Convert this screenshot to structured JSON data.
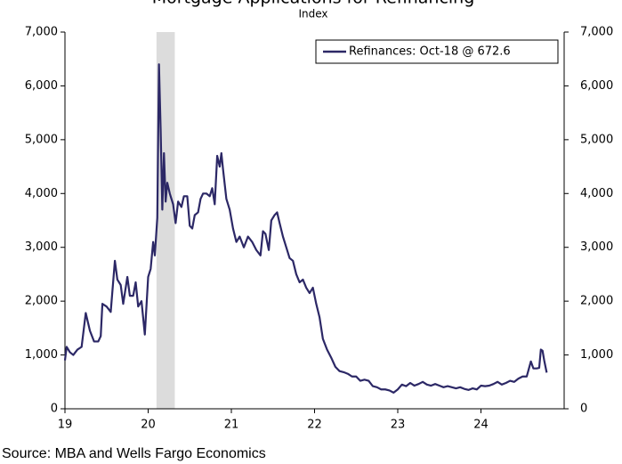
{
  "chart_data": {
    "type": "line",
    "title": "Mortgage Applications for Refinancing",
    "subtitle": "Index",
    "source": "Source: MBA and Wells Fargo Economics",
    "shaded_region": [
      20.1,
      20.32
    ],
    "shade_color": "#dcdcdc",
    "xlim": [
      19,
      25
    ],
    "xticks": [
      19,
      20,
      21,
      22,
      23,
      24
    ],
    "ylim": [
      0,
      7000
    ],
    "yticks": [
      0,
      {
        "value": 1000,
        "label": "1,000"
      },
      {
        "value": 2000,
        "label": "2,000"
      },
      {
        "value": 3000,
        "label": "3,000"
      },
      {
        "value": 4000,
        "label": "4,000"
      },
      {
        "value": 5000,
        "label": "5,000"
      },
      {
        "value": 6000,
        "label": "6,000"
      },
      {
        "value": 7000,
        "label": "7,000"
      }
    ],
    "y2lim": [
      0,
      7000
    ],
    "y2ticks": [
      0,
      {
        "value": 1000,
        "label": "1,000"
      },
      {
        "value": 2000,
        "label": "2,000"
      },
      {
        "value": 3000,
        "label": "3,000"
      },
      {
        "value": 4000,
        "label": "4,000"
      },
      {
        "value": 5000,
        "label": "5,000"
      },
      {
        "value": 6000,
        "label": "6,000"
      },
      {
        "value": 7000,
        "label": "7,000"
      }
    ],
    "legend": "upper right",
    "x": [
      19.0,
      19.02,
      19.06,
      19.1,
      19.15,
      19.2,
      19.25,
      19.3,
      19.35,
      19.4,
      19.43,
      19.45,
      19.5,
      19.55,
      19.6,
      19.63,
      19.67,
      19.7,
      19.75,
      19.78,
      19.82,
      19.85,
      19.88,
      19.92,
      19.96,
      20.0,
      20.03,
      20.06,
      20.08,
      20.11,
      20.13,
      20.15,
      20.17,
      20.19,
      20.21,
      20.23,
      20.26,
      20.3,
      20.33,
      20.36,
      20.4,
      20.43,
      20.47,
      20.5,
      20.53,
      20.56,
      20.6,
      20.63,
      20.66,
      20.7,
      20.74,
      20.77,
      20.8,
      20.83,
      20.86,
      20.88,
      20.9,
      20.94,
      20.98,
      21.02,
      21.06,
      21.1,
      21.15,
      21.2,
      21.25,
      21.3,
      21.35,
      21.38,
      21.41,
      21.45,
      21.48,
      21.52,
      21.55,
      21.58,
      21.62,
      21.66,
      21.7,
      21.74,
      21.78,
      21.82,
      21.86,
      21.9,
      21.94,
      21.98,
      22.02,
      22.06,
      22.1,
      22.15,
      22.2,
      22.25,
      22.3,
      22.35,
      22.4,
      22.45,
      22.5,
      22.55,
      22.6,
      22.65,
      22.7,
      22.75,
      22.8,
      22.85,
      22.9,
      22.95,
      23.0,
      23.05,
      23.1,
      23.15,
      23.2,
      23.25,
      23.3,
      23.35,
      23.4,
      23.45,
      23.5,
      23.55,
      23.6,
      23.65,
      23.7,
      23.75,
      23.8,
      23.85,
      23.9,
      23.95,
      24.0,
      24.05,
      24.1,
      24.15,
      24.2,
      24.25,
      24.3,
      24.35,
      24.4,
      24.45,
      24.5,
      24.55,
      24.6,
      24.63,
      24.67,
      24.7,
      24.72,
      24.74,
      24.76,
      24.79
    ],
    "series": [
      {
        "name": "Refinances: Oct-18 @ 672.6",
        "color": "#2c2866",
        "values": [
          900,
          1150,
          1050,
          1000,
          1100,
          1150,
          1780,
          1450,
          1250,
          1250,
          1350,
          1950,
          1900,
          1800,
          2750,
          2400,
          2300,
          1950,
          2450,
          2100,
          2100,
          2350,
          1900,
          2000,
          1380,
          2450,
          2600,
          3100,
          2850,
          3550,
          6400,
          5200,
          3700,
          4750,
          3850,
          4200,
          4000,
          3800,
          3450,
          3850,
          3750,
          3950,
          3950,
          3400,
          3350,
          3600,
          3650,
          3900,
          4000,
          4000,
          3950,
          4100,
          3800,
          4700,
          4500,
          4750,
          4450,
          3900,
          3700,
          3350,
          3100,
          3200,
          3000,
          3200,
          3100,
          2950,
          2850,
          3300,
          3250,
          2950,
          3500,
          3600,
          3650,
          3450,
          3200,
          3000,
          2800,
          2750,
          2500,
          2350,
          2400,
          2250,
          2150,
          2250,
          1950,
          1700,
          1300,
          1100,
          950,
          780,
          700,
          680,
          650,
          600,
          600,
          520,
          540,
          520,
          420,
          400,
          360,
          360,
          340,
          300,
          360,
          450,
          420,
          480,
          430,
          460,
          500,
          450,
          430,
          460,
          430,
          400,
          420,
          400,
          380,
          400,
          370,
          350,
          380,
          360,
          430,
          420,
          430,
          460,
          500,
          450,
          480,
          520,
          500,
          560,
          600,
          600,
          880,
          750,
          750,
          760,
          1100,
          1080,
          900,
          672.6
        ]
      }
    ]
  }
}
